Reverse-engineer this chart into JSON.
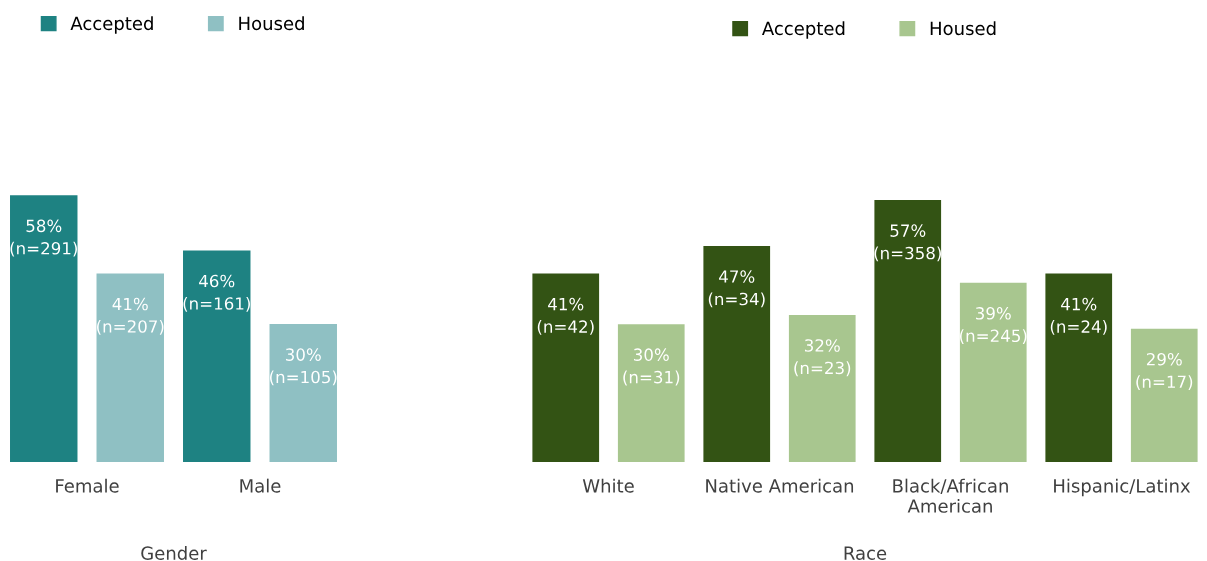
{
  "chart_data": [
    {
      "type": "bar",
      "xlabel": "Gender",
      "categories": [
        "Female",
        "Male"
      ],
      "legend": "top",
      "tick_labels": "x",
      "series": [
        {
          "name": "Accepted",
          "color": "#1e8282",
          "values": [
            58,
            46
          ],
          "value_labels": [
            "58%\n(n=291)",
            "46%\n(n=161)"
          ]
        },
        {
          "name": "Housed",
          "color": "#8fc0c3",
          "values": [
            41,
            30
          ],
          "value_labels": [
            "41%\n(n=207)",
            "30%\n(n=105)"
          ]
        }
      ]
    },
    {
      "type": "bar",
      "xlabel": "Race",
      "categories": [
        "White",
        "Native American",
        "Black/African American",
        "Hispanic/Latinx"
      ],
      "legend": "top",
      "tick_labels": "x",
      "series": [
        {
          "name": "Accepted",
          "color": "#335314",
          "values": [
            41,
            47,
            57,
            41
          ],
          "value_labels": [
            "41%\n(n=42)",
            "47%\n(n=34)",
            "57%\n(n=358)",
            "41%\n(n=24)"
          ]
        },
        {
          "name": "Housed",
          "color": "#a8c68f",
          "values": [
            30,
            32,
            39,
            29
          ],
          "value_labels": [
            "30%\n(n=31)",
            "32%\n(n=23)",
            "39%\n(n=245)",
            "29%\n(n=17)"
          ]
        }
      ]
    }
  ]
}
